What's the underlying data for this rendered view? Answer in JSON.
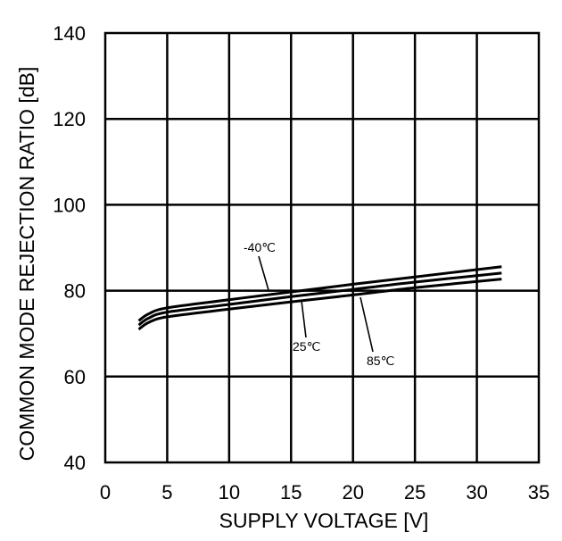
{
  "chart_data": {
    "type": "line",
    "title": "",
    "xlabel": "SUPPLY VOLTAGE [V]",
    "ylabel": "COMMON MODE REJECTION RATIO [dB]",
    "xlim": [
      0,
      35
    ],
    "ylim": [
      40,
      140
    ],
    "xticks": [
      "0",
      "5",
      "10",
      "15",
      "20",
      "25",
      "30",
      "35"
    ],
    "yticks": [
      "40",
      "60",
      "80",
      "100",
      "120",
      "140"
    ],
    "grid": true,
    "series": [
      {
        "name": "-40℃",
        "x": [
          2.7,
          3.5,
          5,
          10,
          15,
          20,
          25,
          32
        ],
        "y": [
          73.0,
          74.6,
          76.0,
          77.9,
          79.7,
          81.5,
          83.2,
          85.6
        ]
      },
      {
        "name": "25℃",
        "x": [
          2.7,
          3.5,
          5,
          10,
          15,
          20,
          25,
          32
        ],
        "y": [
          72.0,
          73.6,
          75.0,
          76.8,
          78.6,
          80.3,
          82.0,
          84.1
        ]
      },
      {
        "name": "85℃",
        "x": [
          2.7,
          3.5,
          5,
          10,
          15,
          20,
          25,
          32
        ],
        "y": [
          71.0,
          72.6,
          73.9,
          75.7,
          77.4,
          79.0,
          80.7,
          82.7
        ]
      }
    ],
    "annotations": [
      {
        "text": "-40℃"
      },
      {
        "text": "25℃"
      },
      {
        "text": "85℃"
      }
    ]
  }
}
